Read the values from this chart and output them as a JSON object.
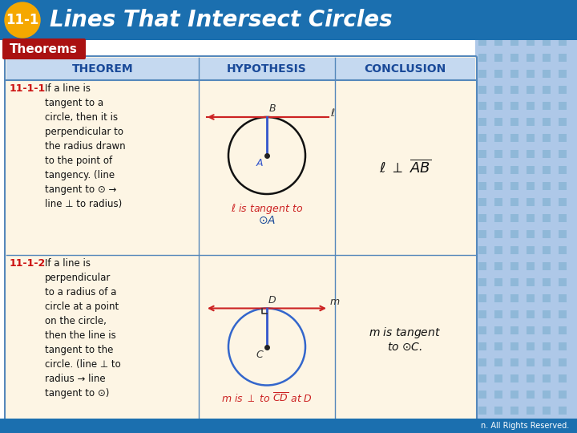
{
  "title_text": "Lines That Intersect Circles",
  "title_badge": "11-1",
  "section_label": "Theorems",
  "header_bg": "#1b6faf",
  "badge_color": "#f5a800",
  "section_label_bg": "#aa1111",
  "table_header_bg": "#c5d9f0",
  "table_body_bg": "#fdf5e4",
  "table_border": "#5588bb",
  "right_panel_bg": "#aec8e8",
  "col_headers": [
    "THEOREM",
    "HYPOTHESIS",
    "CONCLUSION"
  ],
  "theorem1_num": "11-1-1",
  "theorem1_text": "If a line is\ntangent to a\ncircle, then it is\nperpendicular to\nthe radius drawn\nto the point of\ntangency. (line\ntangent to ⊙ →\nline ⊥ to radius)",
  "theorem2_num": "11-1-2",
  "theorem2_text": "If a line is\nperpendicular\nto a radius of a\ncircle at a point\non the circle,\nthen the line is\ntangent to the\ncircle. (line ⊥ to\nradius → line\ntangent to ⊙)",
  "circle1_color": "#111111",
  "circle2_color": "#3366cc",
  "line1_color": "#cc2222",
  "line2_color": "#cc2222",
  "radius1_color": "#3355cc",
  "radius2_color": "#3355cc",
  "footer_text": "n. All Rights Reserved.",
  "footer_bg": "#1b6faf"
}
